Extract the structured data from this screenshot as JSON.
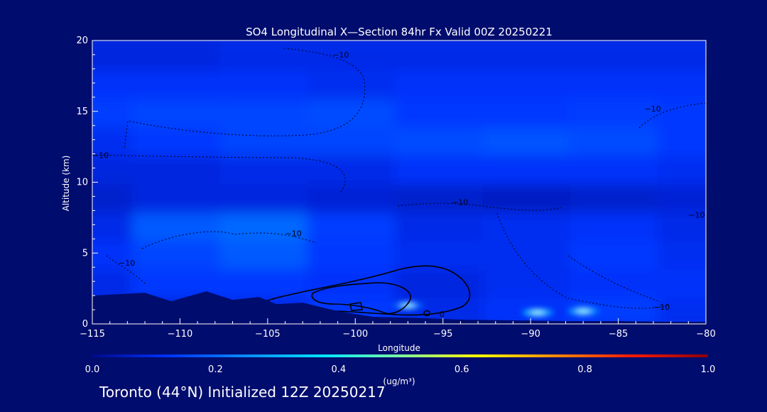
{
  "chart_data": {
    "type": "heatmap",
    "title": "SO4 Longitudinal X—Section 84hr  Fx Valid 00Z 20250221",
    "xlabel": "Longitude",
    "ylabel": "Altitude (km)",
    "xlim": [
      -115,
      -80
    ],
    "ylim": [
      0,
      20
    ],
    "xticks": [
      -115,
      -110,
      -105,
      -100,
      -95,
      -90,
      -85,
      -80
    ],
    "xtick_labels": [
      "−115",
      "−110",
      "−105",
      "−100",
      "−95",
      "−90",
      "−85",
      "−80"
    ],
    "yticks": [
      0,
      5,
      10,
      15,
      20
    ],
    "ytick_labels": [
      "0",
      "5",
      "10",
      "15",
      "20"
    ],
    "colorbar": {
      "label": "(ug/m³)",
      "range": [
        0.0,
        1.0
      ],
      "ticks": [
        0.0,
        0.2,
        0.4,
        0.6,
        0.8,
        1.0
      ],
      "tick_labels": [
        "0.0",
        "0.2",
        "0.4",
        "0.6",
        "0.8",
        "1.0"
      ],
      "colors": [
        "#000a8c",
        "#0033ff",
        "#0a8cff",
        "#00e5ff",
        "#7dffa0",
        "#ffff00",
        "#ff8c00",
        "#ff1a00",
        "#8c0000"
      ]
    },
    "field_columns_lon": [
      -115,
      -110,
      -105,
      -100,
      -95,
      -90,
      -85,
      -80
    ],
    "field_rows_alt": [
      1,
      3,
      5,
      7,
      9,
      11,
      13,
      15,
      17,
      19
    ],
    "field_values": [
      [
        0.1,
        0.09,
        0.1,
        0.13,
        0.1,
        0.12,
        0.14,
        0.11
      ],
      [
        0.1,
        0.13,
        0.13,
        0.12,
        0.09,
        0.11,
        0.12,
        0.12
      ],
      [
        0.12,
        0.15,
        0.18,
        0.13,
        0.11,
        0.11,
        0.13,
        0.11
      ],
      [
        0.1,
        0.18,
        0.2,
        0.14,
        0.1,
        0.11,
        0.12,
        0.1
      ],
      [
        0.07,
        0.09,
        0.09,
        0.08,
        0.07,
        0.06,
        0.07,
        0.08
      ],
      [
        0.09,
        0.09,
        0.1,
        0.1,
        0.12,
        0.12,
        0.12,
        0.11
      ],
      [
        0.11,
        0.13,
        0.15,
        0.15,
        0.16,
        0.17,
        0.16,
        0.13
      ],
      [
        0.14,
        0.15,
        0.15,
        0.16,
        0.13,
        0.13,
        0.14,
        0.13
      ],
      [
        0.12,
        0.12,
        0.12,
        0.11,
        0.12,
        0.12,
        0.12,
        0.12
      ],
      [
        0.09,
        0.09,
        0.1,
        0.1,
        0.1,
        0.1,
        0.1,
        0.1
      ]
    ],
    "hotspots": [
      {
        "lon": -89.6,
        "alt": 0.8,
        "value": 0.28
      },
      {
        "lon": -87.0,
        "alt": 0.9,
        "value": 0.26
      },
      {
        "lon": -97.0,
        "alt": 1.3,
        "value": 0.2
      }
    ],
    "terrain": {
      "lon": [
        -115,
        -112,
        -110.5,
        -108.5,
        -107,
        -105.5,
        -104.5,
        -103,
        -101,
        -99,
        -96,
        -94,
        -91,
        -88,
        -85,
        -82,
        -80
      ],
      "alt": [
        2.0,
        2.2,
        1.6,
        2.3,
        1.7,
        1.9,
        1.4,
        1.5,
        0.9,
        0.5,
        0.4,
        0.3,
        0.25,
        0.2,
        0.2,
        0.15,
        0.15
      ]
    },
    "contour_labels": [
      {
        "text": "−10",
        "lon": -101.3,
        "alt": 18.8
      },
      {
        "text": "−10",
        "lon": -115.0,
        "alt": 11.7
      },
      {
        "text": "−10",
        "lon": -104.0,
        "alt": 6.2
      },
      {
        "text": "−10",
        "lon": -94.5,
        "alt": 8.4
      },
      {
        "text": "−10",
        "lon": -83.5,
        "alt": 15.0
      },
      {
        "text": "−10",
        "lon": -81.0,
        "alt": 7.5
      },
      {
        "text": "−10",
        "lon": -83.0,
        "alt": 1.0
      },
      {
        "text": "−10",
        "lon": -113.5,
        "alt": 4.1
      },
      {
        "text": "0",
        "lon": -95.2,
        "alt": 0.5
      }
    ]
  },
  "footer": {
    "text": "Toronto (44°N) Initialized 12Z 20250217"
  }
}
